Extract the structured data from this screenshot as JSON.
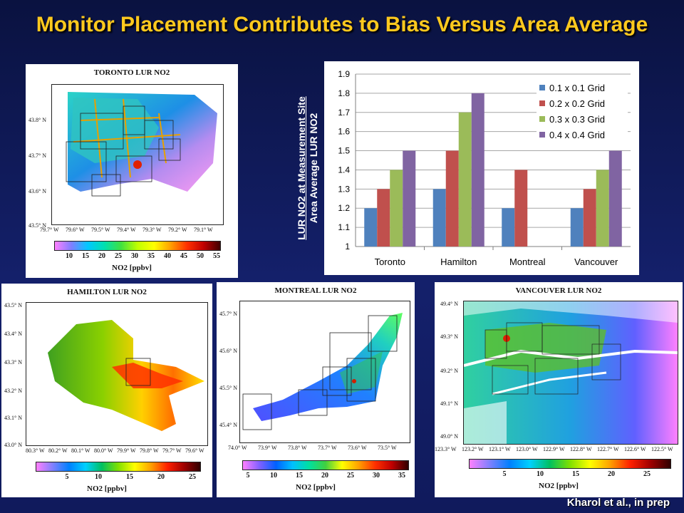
{
  "title": "Monitor Placement Contributes to Bias Versus Area Average",
  "credit": "Kharol et al., in prep",
  "ylabel_line1": "LUR NO2 at Measurement Site",
  "ylabel_line2": "Area Average LUR NO2",
  "maps": {
    "toronto": {
      "title": "TORONTO LUR NO2",
      "lat_labels": [
        "43.8° N",
        "43.7° N",
        "43.6° N",
        "43.5° N"
      ],
      "lon_labels": [
        "79.7° W",
        "79.6° W",
        "79.5° W",
        "79.4° W",
        "79.3° W",
        "79.2° W",
        "79.1° W"
      ],
      "colorbar_ticks": [
        "10",
        "15",
        "20",
        "25",
        "30",
        "35",
        "40",
        "45",
        "50",
        "55"
      ],
      "colorbar_label": "NO2 [ppbv]"
    },
    "hamilton": {
      "title": "HAMILTON LUR NO2",
      "lat_labels": [
        "43.5° N",
        "43.4° N",
        "43.3° N",
        "43.2° N",
        "43.1° N",
        "43.0° N"
      ],
      "lon_labels": [
        "80.3° W",
        "80.2° W",
        "80.1° W",
        "80.0° W",
        "79.9° W",
        "79.8° W",
        "79.7° W",
        "79.6° W"
      ],
      "colorbar_ticks": [
        "5",
        "10",
        "15",
        "20",
        "25"
      ],
      "colorbar_label": "NO2 [ppbv]"
    },
    "montreal": {
      "title": "MONTREAL LUR NO2",
      "lat_labels": [
        "45.7° N",
        "45.6° N",
        "45.5° N",
        "45.4° N"
      ],
      "lon_labels": [
        "74.0° W",
        "73.9° W",
        "73.8° W",
        "73.7° W",
        "73.6° W",
        "73.5° W"
      ],
      "colorbar_ticks": [
        "5",
        "10",
        "15",
        "20",
        "25",
        "30",
        "35"
      ],
      "colorbar_label": "NO2 [ppbv]"
    },
    "vancouver": {
      "title": "VANCOUVER LUR NO2",
      "lat_labels": [
        "49.4° N",
        "49.3° N",
        "49.2° N",
        "49.1° N",
        "49.0° N"
      ],
      "lon_labels": [
        "123.3° W",
        "123.2° W",
        "123.1° W",
        "123.0° W",
        "122.9° W",
        "122.8° W",
        "122.7° W",
        "122.6° W",
        "122.5° W"
      ],
      "colorbar_ticks": [
        "5",
        "10",
        "15",
        "20",
        "25"
      ],
      "colorbar_label": "NO2 [ppbv]"
    }
  },
  "chart_data": {
    "type": "bar",
    "categories": [
      "Toronto",
      "Hamilton",
      "Montreal",
      "Vancouver"
    ],
    "series": [
      {
        "name": "0.1 x 0.1 Grid",
        "color": "#4f81bd",
        "values": [
          1.2,
          1.3,
          1.2,
          1.2
        ]
      },
      {
        "name": "0.2 x 0.2 Grid",
        "color": "#c0504d",
        "values": [
          1.3,
          1.5,
          1.4,
          1.3
        ]
      },
      {
        "name": "0.3 x 0.3 Grid",
        "color": "#9bbb59",
        "values": [
          1.4,
          1.7,
          null,
          1.4
        ]
      },
      {
        "name": "0.4 x 0.4 Grid",
        "color": "#8064a2",
        "values": [
          1.5,
          1.8,
          null,
          1.5
        ]
      }
    ],
    "yticks": [
      "1",
      "1.1",
      "1.2",
      "1.3",
      "1.4",
      "1.5",
      "1.6",
      "1.7",
      "1.8",
      "1.9"
    ],
    "ylim": [
      1,
      1.9
    ],
    "grid": true,
    "legend": "top-right"
  }
}
